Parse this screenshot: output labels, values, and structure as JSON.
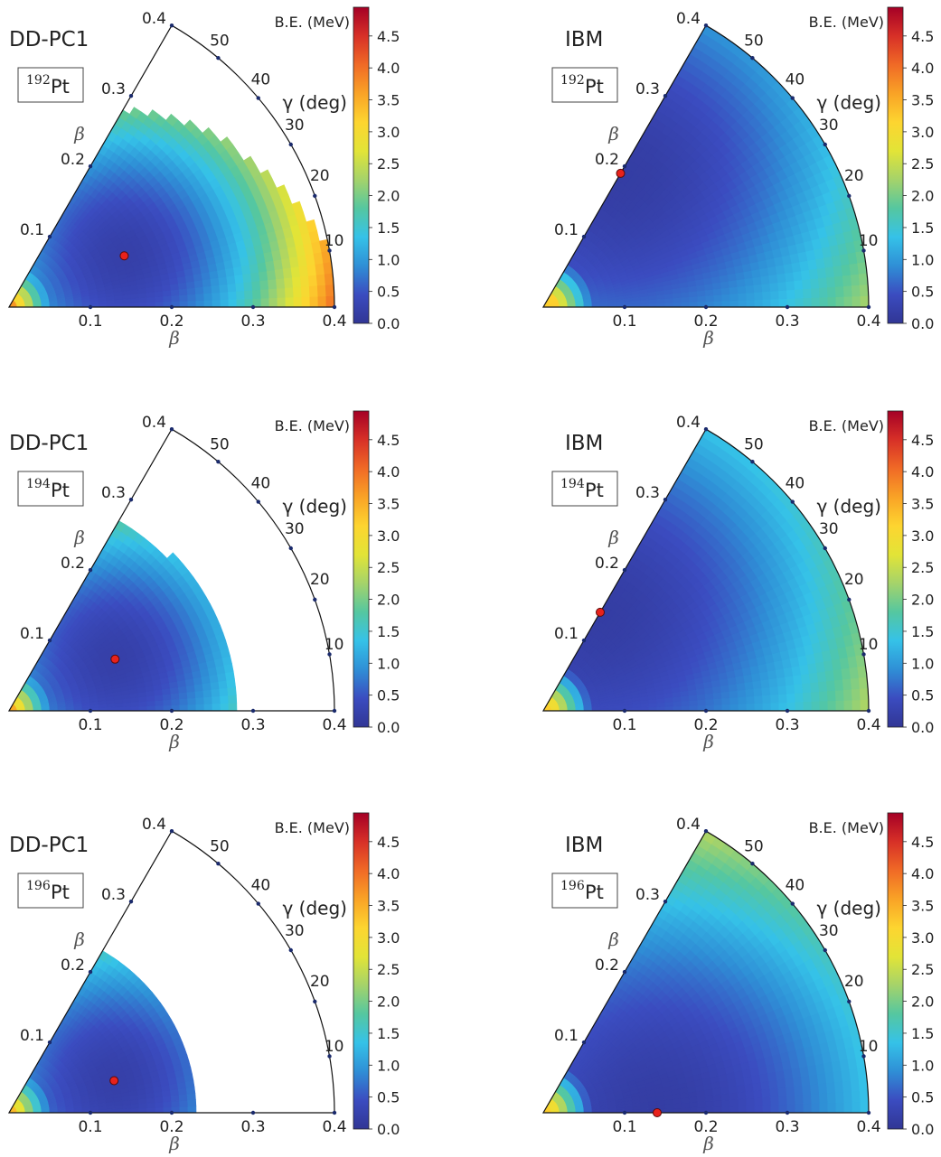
{
  "figure": {
    "colorbar": {
      "label": "B.E. (MeV)",
      "ticks": [
        "0.0",
        "0.5",
        "1.0",
        "1.5",
        "2.0",
        "2.5",
        "3.0",
        "3.5",
        "4.0",
        "4.5"
      ],
      "range": [
        0,
        4.95
      ],
      "colormap": [
        "#313695",
        "#3b4cc0",
        "#2f8fd6",
        "#35c2e8",
        "#55c7a0",
        "#a5d36a",
        "#e2e437",
        "#fdd530",
        "#f9a326",
        "#f06a26",
        "#d73027",
        "#a50026"
      ]
    },
    "axes": {
      "beta_label": "β",
      "gamma_label": "γ (deg)",
      "beta_ticks": [
        "0.1",
        "0.2",
        "0.3",
        "0.4"
      ],
      "edge_beta_ticks": [
        "0.1",
        "0.2",
        "0.3",
        "0.4"
      ],
      "gamma_ticks": [
        "10",
        "20",
        "30",
        "40",
        "50"
      ],
      "beta_range": [
        0,
        0.4
      ],
      "gamma_range": [
        0,
        60
      ]
    },
    "panels": [
      {
        "method": "DD-PC1",
        "mass": "192",
        "element": "Pt",
        "minimum": {
          "beta": 0.155,
          "gamma": 24
        }
      },
      {
        "method": "IBM",
        "mass": "192",
        "element": "Pt",
        "minimum": {
          "beta": 0.19,
          "gamma": 60
        }
      },
      {
        "method": "DD-PC1",
        "mass": "194",
        "element": "Pt",
        "minimum": {
          "beta": 0.145,
          "gamma": 26
        }
      },
      {
        "method": "IBM",
        "mass": "194",
        "element": "Pt",
        "minimum": {
          "beta": 0.14,
          "gamma": 60
        }
      },
      {
        "method": "DD-PC1",
        "mass": "196",
        "element": "Pt",
        "minimum": {
          "beta": 0.135,
          "gamma": 17
        }
      },
      {
        "method": "IBM",
        "mass": "196",
        "element": "Pt",
        "minimum": {
          "beta": 0.14,
          "gamma": 0
        }
      }
    ]
  },
  "chart_data": [
    {
      "type": "heatmap",
      "title": "DD-PC1",
      "nucleus": "192Pt",
      "xlabel": "β",
      "ylabel": "β",
      "angular_label": "γ (deg)",
      "colorbar_label": "B.E. (MeV)",
      "colorbar_range": [
        0,
        4.95
      ],
      "beta_range": [
        0,
        0.4
      ],
      "gamma_range": [
        0,
        60
      ],
      "minimum": {
        "beta": 0.155,
        "gamma": 24
      }
    },
    {
      "type": "heatmap",
      "title": "IBM",
      "nucleus": "192Pt",
      "xlabel": "β",
      "ylabel": "β",
      "angular_label": "γ (deg)",
      "colorbar_label": "B.E. (MeV)",
      "colorbar_range": [
        0,
        4.95
      ],
      "beta_range": [
        0,
        0.4
      ],
      "gamma_range": [
        0,
        60
      ],
      "minimum": {
        "beta": 0.19,
        "gamma": 60
      }
    },
    {
      "type": "heatmap",
      "title": "DD-PC1",
      "nucleus": "194Pt",
      "xlabel": "β",
      "ylabel": "β",
      "angular_label": "γ (deg)",
      "colorbar_label": "B.E. (MeV)",
      "colorbar_range": [
        0,
        4.95
      ],
      "beta_range": [
        0,
        0.4
      ],
      "gamma_range": [
        0,
        60
      ],
      "minimum": {
        "beta": 0.145,
        "gamma": 26
      }
    },
    {
      "type": "heatmap",
      "title": "IBM",
      "nucleus": "194Pt",
      "xlabel": "β",
      "ylabel": "β",
      "angular_label": "γ (deg)",
      "colorbar_label": "B.E. (MeV)",
      "colorbar_range": [
        0,
        4.95
      ],
      "beta_range": [
        0,
        0.4
      ],
      "gamma_range": [
        0,
        60
      ],
      "minimum": {
        "beta": 0.14,
        "gamma": 60
      }
    },
    {
      "type": "heatmap",
      "title": "DD-PC1",
      "nucleus": "196Pt",
      "xlabel": "β",
      "ylabel": "β",
      "angular_label": "γ (deg)",
      "colorbar_label": "B.E. (MeV)",
      "colorbar_range": [
        0,
        4.95
      ],
      "beta_range": [
        0,
        0.4
      ],
      "gamma_range": [
        0,
        60
      ],
      "minimum": {
        "beta": 0.135,
        "gamma": 17
      }
    },
    {
      "type": "heatmap",
      "title": "IBM",
      "nucleus": "196Pt",
      "xlabel": "β",
      "ylabel": "β",
      "angular_label": "γ (deg)",
      "colorbar_label": "B.E. (MeV)",
      "colorbar_range": [
        0,
        4.95
      ],
      "beta_range": [
        0,
        0.4
      ],
      "gamma_range": [
        0,
        60
      ],
      "minimum": {
        "beta": 0.14,
        "gamma": 0
      }
    }
  ]
}
